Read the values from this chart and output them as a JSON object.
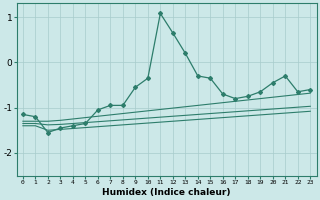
{
  "xlabel": "Humidex (Indice chaleur)",
  "x_values": [
    0,
    1,
    2,
    3,
    4,
    5,
    6,
    7,
    8,
    9,
    10,
    11,
    12,
    13,
    14,
    15,
    16,
    17,
    18,
    19,
    20,
    21,
    22,
    23
  ],
  "main_line": [
    -1.15,
    -1.2,
    -1.55,
    -1.45,
    -1.4,
    -1.35,
    -1.05,
    -0.95,
    -0.95,
    -0.55,
    -0.35,
    1.08,
    0.65,
    0.2,
    -0.3,
    -0.35,
    -0.7,
    -0.8,
    -0.75,
    -0.65,
    -0.45,
    -0.3,
    -0.65,
    -0.6
  ],
  "line2": [
    -1.3,
    -1.3,
    -1.3,
    -1.28,
    -1.25,
    -1.22,
    -1.19,
    -1.16,
    -1.13,
    -1.1,
    -1.07,
    -1.04,
    -1.01,
    -0.98,
    -0.95,
    -0.92,
    -0.89,
    -0.86,
    -0.83,
    -0.8,
    -0.77,
    -0.74,
    -0.71,
    -0.68
  ],
  "line3": [
    -1.35,
    -1.35,
    -1.38,
    -1.37,
    -1.35,
    -1.33,
    -1.31,
    -1.29,
    -1.27,
    -1.25,
    -1.23,
    -1.21,
    -1.19,
    -1.17,
    -1.15,
    -1.13,
    -1.11,
    -1.09,
    -1.07,
    -1.05,
    -1.03,
    -1.01,
    -0.99,
    -0.97
  ],
  "line4": [
    -1.4,
    -1.4,
    -1.5,
    -1.48,
    -1.46,
    -1.44,
    -1.42,
    -1.4,
    -1.38,
    -1.36,
    -1.34,
    -1.32,
    -1.3,
    -1.28,
    -1.26,
    -1.24,
    -1.22,
    -1.2,
    -1.18,
    -1.16,
    -1.14,
    -1.12,
    -1.1,
    -1.08
  ],
  "line_color": "#2d7d6b",
  "bg_color": "#cce8e8",
  "grid_color": "#a8cccc",
  "ylim": [
    -2.5,
    1.3
  ],
  "xlim": [
    -0.5,
    23.5
  ],
  "yticks": [
    -2,
    -1,
    0,
    1
  ],
  "xticks": [
    0,
    1,
    2,
    3,
    4,
    5,
    6,
    7,
    8,
    9,
    10,
    11,
    12,
    13,
    14,
    15,
    16,
    17,
    18,
    19,
    20,
    21,
    22,
    23
  ]
}
